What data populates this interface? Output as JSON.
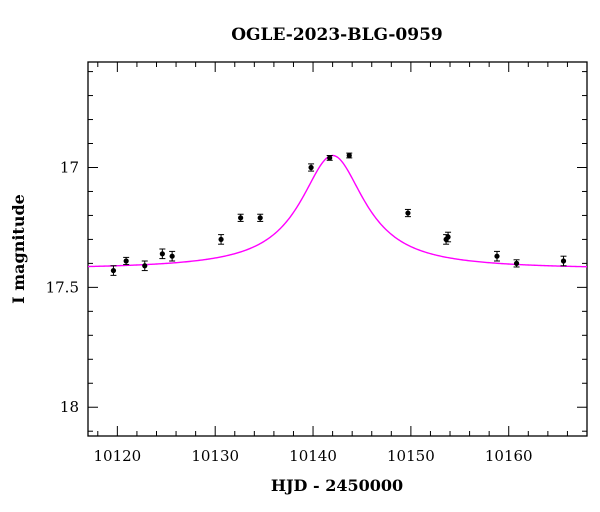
{
  "chart_data": {
    "type": "scatter",
    "title": "OGLE-2023-BLG-0959",
    "xlabel": "HJD - 2450000",
    "ylabel": "I magnitude",
    "xlim": [
      10117,
      10168
    ],
    "ylim": [
      18.12,
      16.56
    ],
    "y_inverted": true,
    "x_ticks_major": [
      10120,
      10130,
      10140,
      10150,
      10160
    ],
    "x_tick_labels": [
      "10120",
      "10130",
      "10140",
      "10150",
      "10160"
    ],
    "y_ticks_major": [
      17,
      17.5,
      18
    ],
    "y_tick_labels": [
      "17",
      "17.5",
      "18"
    ],
    "grid": false,
    "legend": "none",
    "colors": {
      "points": "#000000",
      "model": "#ff00ff"
    },
    "series": [
      {
        "kind": "points_with_errorbars",
        "x": [
          10119.6,
          10120.9,
          10122.8,
          10124.6,
          10125.6,
          10130.6,
          10132.6,
          10134.6,
          10139.8,
          10141.7,
          10143.7,
          10149.7,
          10153.6,
          10153.8,
          10158.8,
          10160.8,
          10165.6
        ],
        "y": [
          17.43,
          17.39,
          17.41,
          17.36,
          17.37,
          17.3,
          17.21,
          17.21,
          17.0,
          16.96,
          16.95,
          17.19,
          17.3,
          17.29,
          17.37,
          17.4,
          17.39
        ],
        "err": [
          0.02,
          0.015,
          0.02,
          0.02,
          0.02,
          0.02,
          0.015,
          0.015,
          0.015,
          0.01,
          0.01,
          0.015,
          0.02,
          0.02,
          0.02,
          0.015,
          0.02
        ]
      },
      {
        "kind": "model_curve",
        "t0": 10142.0,
        "peak_mag": 16.95,
        "baseline_mag": 17.425,
        "width_days": 4.0
      }
    ]
  }
}
